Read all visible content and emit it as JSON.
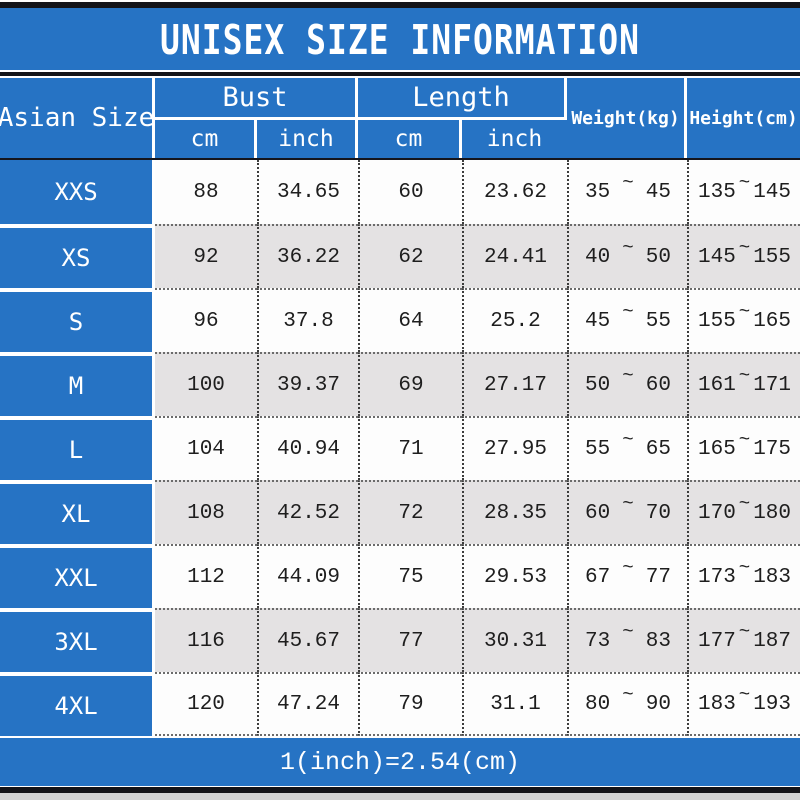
{
  "header": {
    "size_column": "Asian Size",
    "bust_group": "Bust",
    "length_group": "Length",
    "subunits": [
      "cm",
      "inch",
      "cm",
      "inch"
    ],
    "weight": "Weight(kg)",
    "height": "Height(cm)"
  },
  "range_separator": "~",
  "colors": {
    "accent_blue": "#2673C4",
    "row_alt_gray": "#E4E2E3",
    "row_white": "#FDFDFD",
    "bar_black": "#131318",
    "text_dark": "#1E1E1E",
    "header_text": "#FFFFFF"
  },
  "chart_data": {
    "type": "table",
    "title": "UNISEX SIZE INFORMATION",
    "columns": [
      "Asian Size",
      "Bust cm",
      "Bust inch",
      "Length cm",
      "Length inch",
      "Weight(kg)",
      "Height(cm)"
    ],
    "rows": [
      {
        "size": "XXS",
        "bust_cm": "88",
        "bust_inch": "34.65",
        "length_cm": "60",
        "length_inch": "23.62",
        "weight_kg": [
          "35",
          "45"
        ],
        "height_cm": [
          "135",
          "145"
        ]
      },
      {
        "size": "XS",
        "bust_cm": "92",
        "bust_inch": "36.22",
        "length_cm": "62",
        "length_inch": "24.41",
        "weight_kg": [
          "40",
          "50"
        ],
        "height_cm": [
          "145",
          "155"
        ]
      },
      {
        "size": "S",
        "bust_cm": "96",
        "bust_inch": "37.8",
        "length_cm": "64",
        "length_inch": "25.2",
        "weight_kg": [
          "45",
          "55"
        ],
        "height_cm": [
          "155",
          "165"
        ]
      },
      {
        "size": "M",
        "bust_cm": "100",
        "bust_inch": "39.37",
        "length_cm": "69",
        "length_inch": "27.17",
        "weight_kg": [
          "50",
          "60"
        ],
        "height_cm": [
          "161",
          "171"
        ]
      },
      {
        "size": "L",
        "bust_cm": "104",
        "bust_inch": "40.94",
        "length_cm": "71",
        "length_inch": "27.95",
        "weight_kg": [
          "55",
          "65"
        ],
        "height_cm": [
          "165",
          "175"
        ]
      },
      {
        "size": "XL",
        "bust_cm": "108",
        "bust_inch": "42.52",
        "length_cm": "72",
        "length_inch": "28.35",
        "weight_kg": [
          "60",
          "70"
        ],
        "height_cm": [
          "170",
          "180"
        ]
      },
      {
        "size": "XXL",
        "bust_cm": "112",
        "bust_inch": "44.09",
        "length_cm": "75",
        "length_inch": "29.53",
        "weight_kg": [
          "67",
          "77"
        ],
        "height_cm": [
          "173",
          "183"
        ]
      },
      {
        "size": "3XL",
        "bust_cm": "116",
        "bust_inch": "45.67",
        "length_cm": "77",
        "length_inch": "30.31",
        "weight_kg": [
          "73",
          "83"
        ],
        "height_cm": [
          "177",
          "187"
        ]
      },
      {
        "size": "4XL",
        "bust_cm": "120",
        "bust_inch": "47.24",
        "length_cm": "79",
        "length_inch": "31.1",
        "weight_kg": [
          "80",
          "90"
        ],
        "height_cm": [
          "183",
          "193"
        ]
      }
    ],
    "note": "1(inch)=2.54(cm)"
  }
}
